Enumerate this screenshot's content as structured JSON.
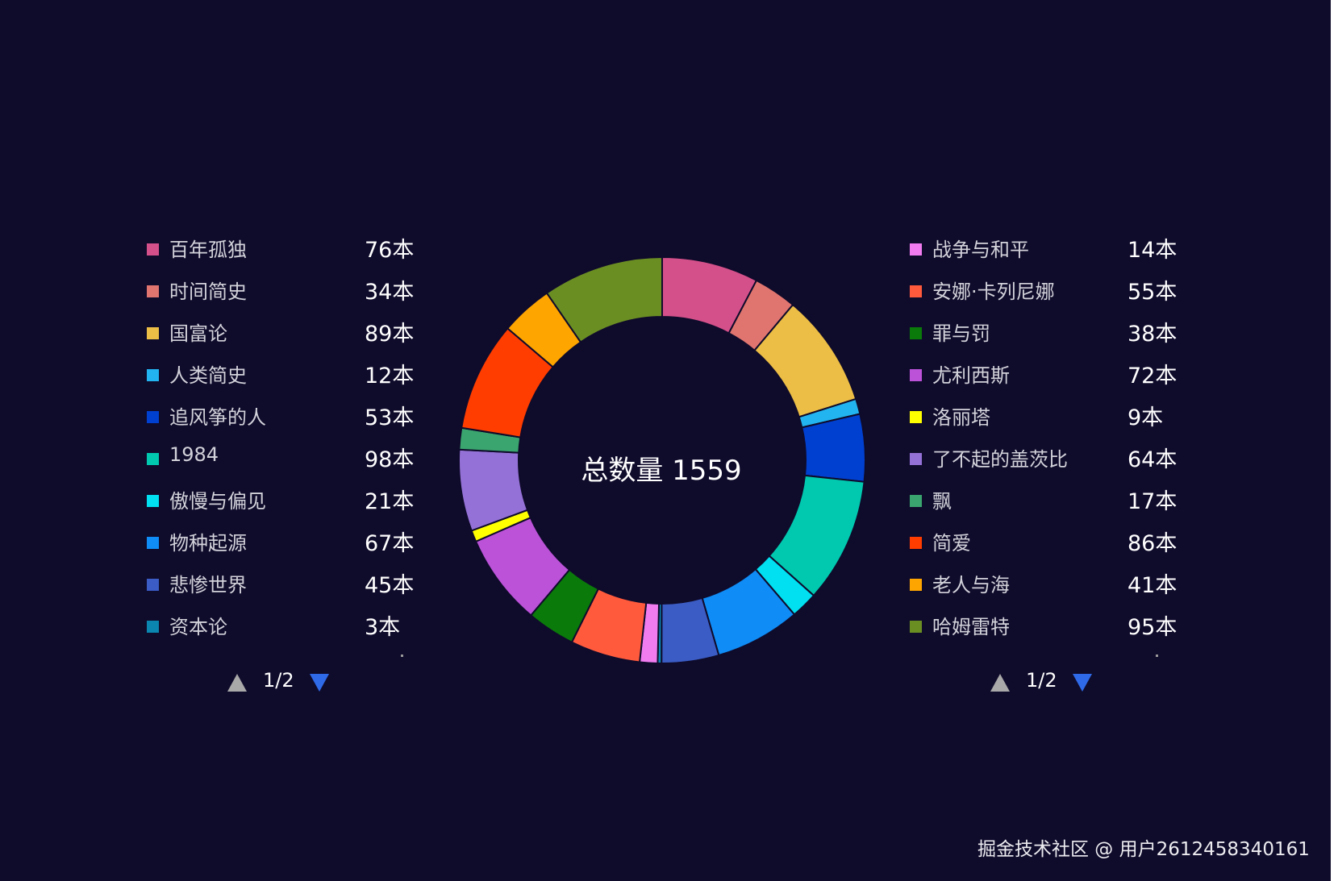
{
  "chart_data": {
    "type": "pie",
    "variant": "donut",
    "center_label": "总数量 1559",
    "unit": "本",
    "categories": [
      "百年孤独",
      "时间简史",
      "国富论",
      "人类简史",
      "追风筝的人",
      "1984",
      "傲慢与偏见",
      "物种起源",
      "悲惨世界",
      "资本论",
      "战争与和平",
      "安娜·卡列尼娜",
      "罪与罚",
      "尤利西斯",
      "洛丽塔",
      "了不起的盖茨比",
      "飘",
      "简爱",
      "老人与海",
      "哈姆雷特"
    ],
    "values": [
      76,
      34,
      89,
      12,
      53,
      98,
      21,
      67,
      45,
      3,
      14,
      55,
      38,
      72,
      9,
      64,
      17,
      86,
      41,
      95
    ],
    "colors": [
      "#d4508a",
      "#e0756f",
      "#ecbe45",
      "#22b4f0",
      "#0040d0",
      "#00c9b0",
      "#00e0f0",
      "#0f8cf6",
      "#3a5cc4",
      "#0a86b0",
      "#f07cf0",
      "#ff5a3c",
      "#0a7a0a",
      "#bb52d8",
      "#ffff00",
      "#9471d6",
      "#3aa56e",
      "#ff3d00",
      "#ffa500",
      "#6b8e23"
    ],
    "start_angle_deg": 0,
    "direction": "clockwise"
  },
  "legend_left": {
    "items": [
      {
        "name": "百年孤独",
        "value": "76本",
        "color": "#d4508a"
      },
      {
        "name": "时间简史",
        "value": "34本",
        "color": "#e0756f"
      },
      {
        "name": "国富论",
        "value": "89本",
        "color": "#ecbe45"
      },
      {
        "name": "人类简史",
        "value": "12本",
        "color": "#22b4f0"
      },
      {
        "name": "追风筝的人",
        "value": "53本",
        "color": "#0040d0"
      },
      {
        "name": "1984",
        "value": "98本",
        "color": "#00c9b0"
      },
      {
        "name": "傲慢与偏见",
        "value": "21本",
        "color": "#00e0f0"
      },
      {
        "name": "物种起源",
        "value": "67本",
        "color": "#0f8cf6"
      },
      {
        "name": "悲惨世界",
        "value": "45本",
        "color": "#3a5cc4"
      },
      {
        "name": "资本论",
        "value": "3本",
        "color": "#0a86b0"
      }
    ],
    "page": "1/2"
  },
  "legend_right": {
    "items": [
      {
        "name": "战争与和平",
        "value": "14本",
        "color": "#f07cf0"
      },
      {
        "name": "安娜·卡列尼娜",
        "value": "55本",
        "color": "#ff5a3c"
      },
      {
        "name": "罪与罚",
        "value": "38本",
        "color": "#0a7a0a"
      },
      {
        "name": "尤利西斯",
        "value": "72本",
        "color": "#bb52d8"
      },
      {
        "name": "洛丽塔",
        "value": "9本",
        "color": "#ffff00"
      },
      {
        "name": "了不起的盖茨比",
        "value": "64本",
        "color": "#9471d6"
      },
      {
        "name": "飘",
        "value": "17本",
        "color": "#3aa56e"
      },
      {
        "name": "简爱",
        "value": "86本",
        "color": "#ff3d00"
      },
      {
        "name": "老人与海",
        "value": "41本",
        "color": "#ffa500"
      },
      {
        "name": "哈姆雷特",
        "value": "95本",
        "color": "#6b8e23"
      }
    ],
    "page": "1/2"
  },
  "watermark": "掘金技术社区 @ 用户2612458340161",
  "colors": {
    "background": "#0f0b2b",
    "pager_up": "#a9a9a9",
    "pager_down": "#2f6ae8"
  },
  "icons": {
    "pager_up": "triangle-up-icon",
    "pager_down": "triangle-down-icon"
  }
}
